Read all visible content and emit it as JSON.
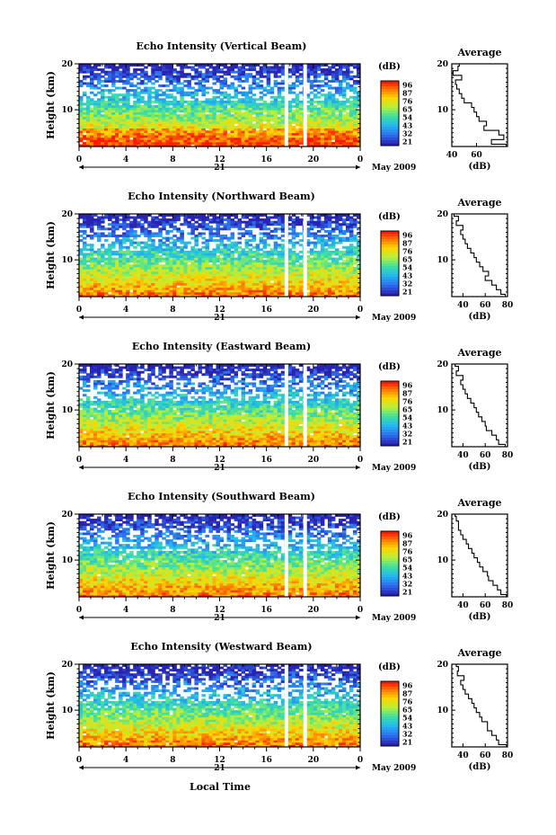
{
  "figure": {
    "xlabel": "Local Time",
    "date_label": "May 2009",
    "day_label": "21",
    "unit_label": "(dB)",
    "average_title": "Average",
    "average_xlabel": "(dB)"
  },
  "colorbar": {
    "levels": [
      "96",
      "87",
      "76",
      "65",
      "54",
      "43",
      "32",
      "21"
    ],
    "colors": [
      "#ff1a00",
      "#ff7a00",
      "#ffd400",
      "#b8f03a",
      "#3fe0a0",
      "#22b8f0",
      "#2f6ff0",
      "#2a22b0"
    ]
  },
  "chart_data": [
    {
      "type": "heatmap",
      "title": "Echo Intensity (Vertical Beam)",
      "ylabel": "Height (km)",
      "xlim": [
        0,
        24
      ],
      "ylim": [
        2,
        20
      ],
      "xticks": [
        "0",
        "4",
        "8",
        "12",
        "16",
        "20",
        "0"
      ],
      "yticks": [
        "10",
        "20"
      ],
      "gaps_hours": [
        17.7,
        19.3
      ],
      "average": {
        "xlim": [
          40,
          85
        ],
        "xticks": [
          "40",
          "60"
        ],
        "yticks": [
          "10",
          "20"
        ],
        "height_km": [
          2,
          3,
          4,
          5,
          6,
          7,
          8,
          9,
          10,
          11,
          12,
          13,
          14,
          15,
          16,
          17,
          18,
          19,
          20
        ],
        "db": [
          84,
          72,
          82,
          78,
          66,
          68,
          62,
          60,
          58,
          56,
          50,
          48,
          46,
          44,
          43,
          48,
          41,
          45,
          46
        ]
      }
    },
    {
      "type": "heatmap",
      "title": "Echo Intensity (Northward Beam)",
      "ylabel": "Height (km)",
      "xlim": [
        0,
        24
      ],
      "ylim": [
        2,
        20
      ],
      "xticks": [
        "0",
        "4",
        "8",
        "12",
        "16",
        "20",
        "0"
      ],
      "yticks": [
        "10",
        "20"
      ],
      "gaps_hours": [
        17.7,
        19.3
      ],
      "average": {
        "xlim": [
          30,
          80
        ],
        "xticks": [
          "40",
          "60",
          "80"
        ],
        "yticks": [
          "10",
          "20"
        ],
        "height_km": [
          2,
          3,
          4,
          5,
          6,
          7,
          8,
          9,
          10,
          11,
          12,
          13,
          14,
          15,
          16,
          17,
          18,
          19,
          20
        ],
        "db": [
          78,
          74,
          70,
          66,
          60,
          63,
          58,
          55,
          52,
          50,
          47,
          44,
          42,
          40,
          38,
          40,
          34,
          36,
          32
        ]
      }
    },
    {
      "type": "heatmap",
      "title": "Echo Intensity (Eastward Beam)",
      "ylabel": "Height (km)",
      "xlim": [
        0,
        24
      ],
      "ylim": [
        2,
        20
      ],
      "xticks": [
        "0",
        "4",
        "8",
        "12",
        "16",
        "20",
        "0"
      ],
      "yticks": [
        "10",
        "20"
      ],
      "gaps_hours": [
        17.7,
        19.3
      ],
      "average": {
        "xlim": [
          30,
          80
        ],
        "xticks": [
          "40",
          "60",
          "80"
        ],
        "yticks": [
          "10",
          "20"
        ],
        "height_km": [
          2,
          3,
          4,
          5,
          6,
          7,
          8,
          9,
          10,
          11,
          12,
          13,
          14,
          15,
          16,
          17,
          18,
          19,
          20
        ],
        "db": [
          78,
          72,
          70,
          66,
          61,
          60,
          57,
          54,
          52,
          50,
          47,
          44,
          42,
          40,
          38,
          40,
          34,
          36,
          33
        ]
      }
    },
    {
      "type": "heatmap",
      "title": "Echo Intensity (Southward Beam)",
      "ylabel": "Height (km)",
      "xlim": [
        0,
        24
      ],
      "ylim": [
        2,
        20
      ],
      "xticks": [
        "0",
        "4",
        "8",
        "12",
        "16",
        "20",
        "0"
      ],
      "yticks": [
        "10",
        "20"
      ],
      "gaps_hours": [
        17.7,
        19.3
      ],
      "average": {
        "xlim": [
          30,
          80
        ],
        "xticks": [
          "40",
          "60",
          "80"
        ],
        "yticks": [
          "10",
          "20"
        ],
        "height_km": [
          2,
          3,
          4,
          5,
          6,
          7,
          8,
          9,
          10,
          11,
          12,
          13,
          14,
          15,
          16,
          17,
          18,
          19,
          20
        ],
        "db": [
          79,
          74,
          71,
          67,
          63,
          62,
          58,
          55,
          53,
          50,
          48,
          45,
          43,
          40,
          38,
          36,
          36,
          34,
          33
        ]
      }
    },
    {
      "type": "heatmap",
      "title": "Echo Intensity (Westward Beam)",
      "ylabel": "Height (km)",
      "xlim": [
        0,
        24
      ],
      "ylim": [
        2,
        20
      ],
      "xticks": [
        "0",
        "4",
        "8",
        "12",
        "16",
        "20",
        "0"
      ],
      "yticks": [
        "10",
        "20"
      ],
      "gaps_hours": [
        17.7,
        19.3
      ],
      "average": {
        "xlim": [
          30,
          80
        ],
        "xticks": [
          "40",
          "60",
          "80"
        ],
        "yticks": [
          "10",
          "20"
        ],
        "height_km": [
          2,
          3,
          4,
          5,
          6,
          7,
          8,
          9,
          10,
          11,
          12,
          13,
          14,
          15,
          16,
          17,
          18,
          19,
          20
        ],
        "db": [
          79,
          72,
          70,
          66,
          62,
          62,
          57,
          55,
          52,
          50,
          48,
          45,
          42,
          40,
          38,
          41,
          35,
          36,
          34
        ]
      }
    }
  ]
}
